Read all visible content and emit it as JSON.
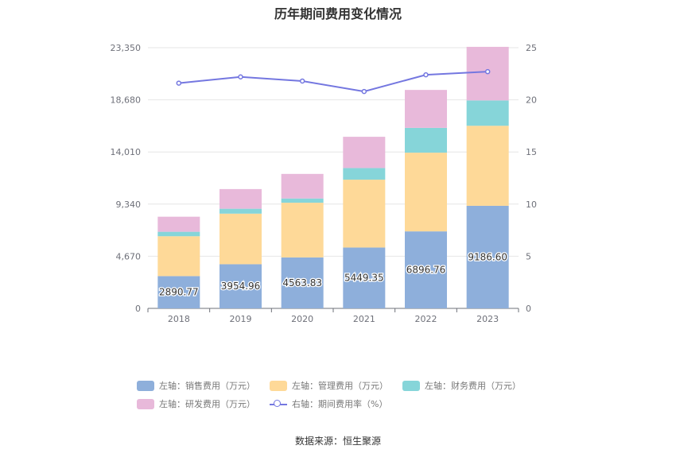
{
  "colors": {
    "sales": "#8eafdb",
    "admin": "#fed998",
    "finance": "#86d5d9",
    "rnd": "#e8b9da",
    "rate": "#7477e0"
  },
  "chart_data": {
    "type": "bar",
    "stacked": true,
    "title": "历年期间费用变化情况",
    "categories": [
      "2018",
      "2019",
      "2020",
      "2021",
      "2022",
      "2023"
    ],
    "left_axis": {
      "ticks": [
        "0",
        "4,670",
        "9,340",
        "14,010",
        "18,680",
        "23,350"
      ],
      "ylim": [
        0,
        23350
      ]
    },
    "right_axis": {
      "ticks": [
        "0",
        "5",
        "10",
        "15",
        "20",
        "25"
      ],
      "ylim": [
        0,
        25
      ]
    },
    "series": [
      {
        "key": "sales",
        "name": "左轴：销售费用（万元）",
        "axis": "left",
        "values": [
          2890.77,
          3954.96,
          4563.83,
          5449.35,
          6896.76,
          9186.6
        ],
        "labels": [
          "2890.77",
          "3954.96",
          "4563.83",
          "5449.35",
          "6896.76",
          "9186.60"
        ]
      },
      {
        "key": "admin",
        "name": "左轴：管理费用（万元）",
        "axis": "left",
        "values": [
          3570,
          4530,
          4900,
          6080,
          7050,
          7170
        ]
      },
      {
        "key": "finance",
        "name": "左轴：财务费用（万元）",
        "axis": "left",
        "values": [
          400,
          440,
          380,
          1040,
          2220,
          2270
        ]
      },
      {
        "key": "rnd",
        "name": "左轴：研发费用（万元）",
        "axis": "left",
        "values": [
          1350,
          1760,
          2200,
          2800,
          3400,
          4800
        ]
      },
      {
        "key": "rate",
        "name": "右轴：期间费用率（%）",
        "axis": "right",
        "type": "line",
        "values": [
          21.6,
          22.2,
          21.8,
          20.8,
          22.4,
          22.7
        ]
      }
    ]
  },
  "legend_rows": [
    [
      {
        "key": "sales",
        "label": "左轴：销售费用（万元）",
        "kind": "box"
      },
      {
        "key": "admin",
        "label": "左轴：管理费用（万元）",
        "kind": "box"
      },
      {
        "key": "finance",
        "label": "左轴：财务费用（万元）",
        "kind": "box"
      }
    ],
    [
      {
        "key": "rnd",
        "label": "左轴：研发费用（万元）",
        "kind": "box"
      },
      {
        "key": "rate",
        "label": "右轴：期间费用率（%）",
        "kind": "line"
      }
    ]
  ],
  "source": "数据来源：恒生聚源"
}
